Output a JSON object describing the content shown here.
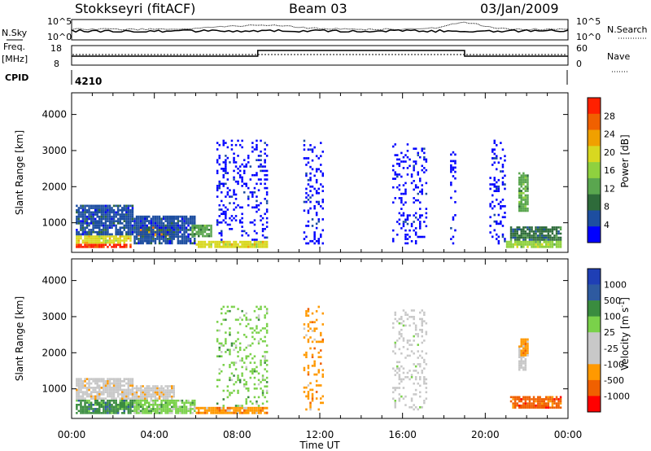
{
  "header": {
    "station": "Stokkseyri (fitACF)",
    "beam": "Beam 03",
    "date": "03/Jan/2009"
  },
  "panels": {
    "nsky": {
      "left_label": "N.Sky",
      "right_label": "N.Search",
      "ytick_top": "10^5",
      "ytick_bottom": "10^0"
    },
    "freq": {
      "left_label_1": "Freq.",
      "left_label_2": "[MHz]",
      "right_label": "Nave",
      "left_top": "18",
      "left_bottom": "8",
      "right_top": "60",
      "right_bottom": "0"
    },
    "cpid": {
      "label": "CPID",
      "value": "4210"
    }
  },
  "colors": {
    "power": [
      "#0000ff",
      "#1d4ea0",
      "#2e6b3a",
      "#5aa64f",
      "#8fd13f",
      "#d8d820",
      "#f0a000",
      "#f06000",
      "#ff2000"
    ],
    "velocity": [
      "#ff0000",
      "#f06000",
      "#ff9900",
      "#c8c8c8",
      "#c8c8c8",
      "#7ad14a",
      "#3a8c3f",
      "#2e5aa0",
      "#1f3fb5"
    ]
  },
  "chart_data": [
    {
      "type": "heatmap",
      "name": "Power",
      "xlabel": "Time UT",
      "ylabel": "Slant Range [km]",
      "xticks": [
        "00:00",
        "04:00",
        "08:00",
        "12:00",
        "16:00",
        "20:00",
        "00:00"
      ],
      "xlim": [
        0,
        24
      ],
      "yticks": [
        "1000",
        "2000",
        "3000",
        "4000"
      ],
      "ylim": [
        180,
        4600
      ],
      "colorbar": {
        "label": "Power [dB]",
        "ticks": [
          "4",
          "8",
          "12",
          "16",
          "20",
          "24",
          "28"
        ]
      },
      "regions": [
        {
          "t": [
            0.2,
            2.9
          ],
          "r": [
            300,
            420
          ],
          "level": 8
        },
        {
          "t": [
            0.2,
            2.9
          ],
          "r": [
            420,
            650
          ],
          "level": 5
        },
        {
          "t": [
            0.2,
            3.0
          ],
          "r": [
            650,
            1500
          ],
          "level": 1
        },
        {
          "t": [
            3.2,
            5.0
          ],
          "r": [
            620,
            900
          ],
          "level": 6
        },
        {
          "t": [
            3.0,
            6.0
          ],
          "r": [
            400,
            1200
          ],
          "level": 1
        },
        {
          "t": [
            5.8,
            6.8
          ],
          "r": [
            600,
            950
          ],
          "level": 3
        },
        {
          "t": [
            6.0,
            9.5
          ],
          "r": [
            300,
            500
          ],
          "level": 5
        },
        {
          "t": [
            7.0,
            9.5
          ],
          "r": [
            500,
            3300
          ],
          "level": 0
        },
        {
          "t": [
            11.2,
            12.2
          ],
          "r": [
            400,
            3300
          ],
          "level": 0
        },
        {
          "t": [
            15.5,
            17.2
          ],
          "r": [
            400,
            3200
          ],
          "level": 0
        },
        {
          "t": [
            18.3,
            18.6
          ],
          "r": [
            400,
            3100
          ],
          "level": 0
        },
        {
          "t": [
            20.2,
            21.0
          ],
          "r": [
            400,
            3300
          ],
          "level": 0
        },
        {
          "t": [
            21.6,
            22.1
          ],
          "r": [
            1300,
            2400
          ],
          "level": 3
        },
        {
          "t": [
            21.2,
            23.7
          ],
          "r": [
            500,
            900
          ],
          "level": 2
        },
        {
          "t": [
            21.0,
            23.7
          ],
          "r": [
            300,
            500
          ],
          "level": 4
        }
      ]
    },
    {
      "type": "heatmap",
      "name": "Velocity",
      "xlabel": "Time UT",
      "ylabel": "Slant Range [km]",
      "xticks": [
        "00:00",
        "04:00",
        "08:00",
        "12:00",
        "16:00",
        "20:00",
        "00:00"
      ],
      "xlim": [
        0,
        24
      ],
      "yticks": [
        "1000",
        "2000",
        "3000",
        "4000"
      ],
      "ylim": [
        180,
        4600
      ],
      "colorbar": {
        "label": "Velocity [m s^-1]",
        "ticks": [
          "1000",
          "500",
          "100",
          "25",
          "-25",
          "-100",
          "-500",
          "-1000"
        ]
      },
      "regions": [
        {
          "t": [
            0.2,
            3.0
          ],
          "r": [
            300,
            700
          ],
          "level": 6
        },
        {
          "t": [
            0.2,
            3.0
          ],
          "r": [
            700,
            1300
          ],
          "level": 3
        },
        {
          "t": [
            3.0,
            5.0
          ],
          "r": [
            700,
            1100
          ],
          "level": 3
        },
        {
          "t": [
            3.0,
            6.0
          ],
          "r": [
            300,
            700
          ],
          "level": 5
        },
        {
          "t": [
            6.0,
            9.5
          ],
          "r": [
            300,
            500
          ],
          "level": 2
        },
        {
          "t": [
            7.0,
            9.5
          ],
          "r": [
            500,
            3300
          ],
          "level": 5
        },
        {
          "t": [
            11.2,
            12.2
          ],
          "r": [
            400,
            3300
          ],
          "level": 2
        },
        {
          "t": [
            15.5,
            17.2
          ],
          "r": [
            400,
            3200
          ],
          "level": 4
        },
        {
          "t": [
            21.6,
            22.0
          ],
          "r": [
            1500,
            2200
          ],
          "level": 3
        },
        {
          "t": [
            21.7,
            22.1
          ],
          "r": [
            1900,
            2400
          ],
          "level": 2
        },
        {
          "t": [
            21.2,
            23.7
          ],
          "r": [
            450,
            800
          ],
          "level": 1
        }
      ]
    }
  ]
}
